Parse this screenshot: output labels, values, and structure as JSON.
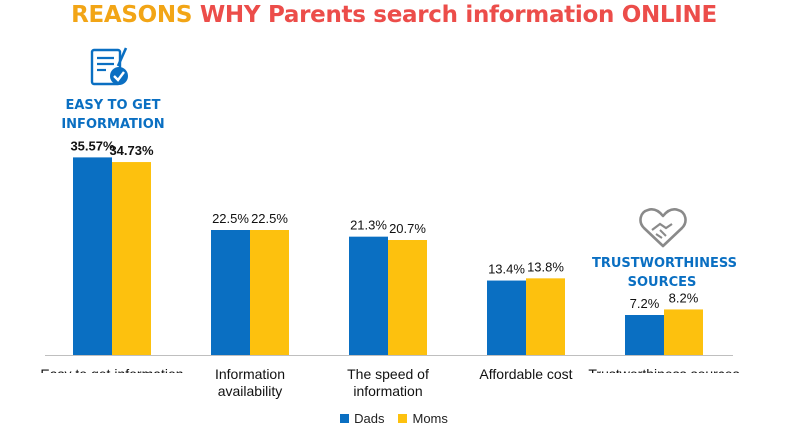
{
  "title": {
    "part1": "REASONS",
    "part2": "WHY Parents search information ONLINE"
  },
  "callouts": {
    "easy_line1": "EASY TO GET",
    "easy_line2": "INFORMATION",
    "trust_line1": "TRUSTWORTHINESS",
    "trust_line2": "SOURCES"
  },
  "colors": {
    "dads": "#0a6fc2",
    "moms": "#fdc10e",
    "title_accent1": "#f2a516",
    "title_accent2": "#ec4d4a"
  },
  "icons": {
    "easy": "checklist-document-icon",
    "trust": "handshake-heart-icon"
  },
  "chart_data": {
    "type": "bar",
    "categories": [
      [
        "Easy to get information"
      ],
      [
        "Information",
        "availability"
      ],
      [
        "The speed of",
        "information"
      ],
      [
        "Affordable cost"
      ],
      [
        "Trustworthiness sources"
      ]
    ],
    "series": [
      {
        "name": "Dads",
        "values": [
          35.57,
          22.5,
          21.3,
          13.4,
          7.2
        ],
        "labels": [
          "35.57%",
          "22.5%",
          "21.3%",
          "13.4%",
          "7.2%"
        ]
      },
      {
        "name": "Moms",
        "values": [
          34.73,
          22.5,
          20.7,
          13.8,
          8.2
        ],
        "labels": [
          "34.73%",
          "22.5%",
          "20.7%",
          "13.8%",
          "8.2%"
        ]
      }
    ],
    "ylim": [
      0,
      36
    ],
    "legend": "bottom-center",
    "grid": false
  }
}
